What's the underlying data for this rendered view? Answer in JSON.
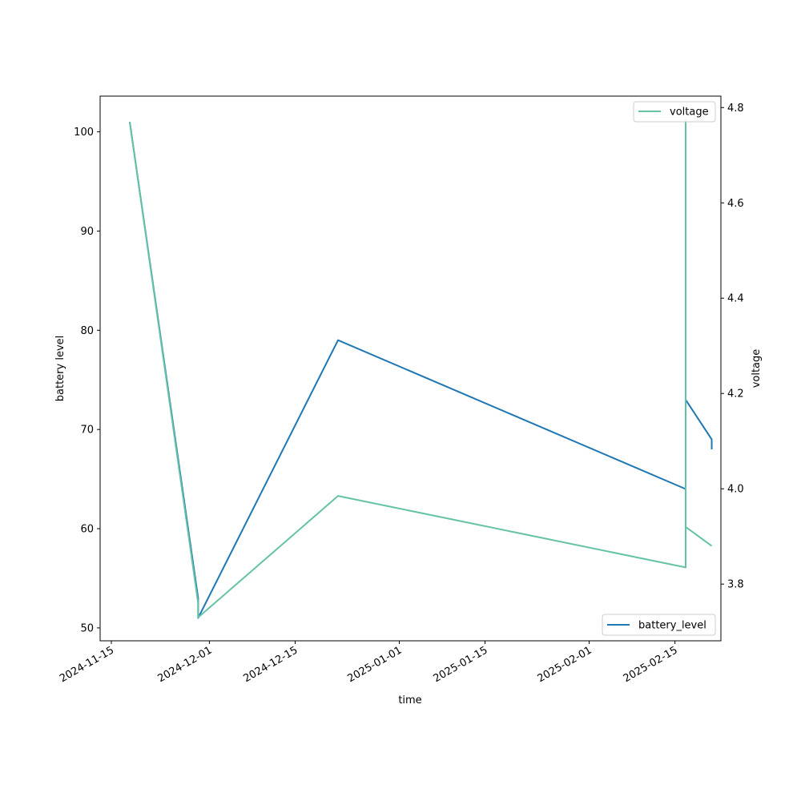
{
  "chart_data": {
    "type": "line",
    "xlabel": "time",
    "ylabel": "battery level",
    "y2label": "voltage",
    "x_ticks": [
      "2024-11-15",
      "2024-12-01",
      "2024-12-15",
      "2025-01-01",
      "2025-01-15",
      "2025-02-01",
      "2025-02-15"
    ],
    "x_range": [
      "2024-11-13T04:00",
      "2025-02-22T12:00"
    ],
    "y_ticks": [
      50,
      60,
      70,
      80,
      90,
      100
    ],
    "ylim": [
      48.7,
      103.6
    ],
    "y2_ticks": [
      3.8,
      4.0,
      4.2,
      4.4,
      4.6,
      4.8
    ],
    "y2lim": [
      3.681,
      4.824
    ],
    "grid": false,
    "series": [
      {
        "name": "battery_level",
        "axis": "left",
        "color": "#1f77b4",
        "legend_position": "lower-right",
        "points": [
          [
            "2024-11-18T00:00",
            101
          ],
          [
            "2024-11-29T04:00",
            53
          ],
          [
            "2024-11-29T04:00",
            51
          ],
          [
            "2024-12-22T00:00",
            79
          ],
          [
            "2025-02-16T18:00",
            64
          ],
          [
            "2025-02-16T18:00",
            98
          ],
          [
            "2025-02-16T18:00",
            101
          ],
          [
            "2025-02-16T18:00",
            73
          ],
          [
            "2025-02-21T00:00",
            69
          ],
          [
            "2025-02-21T00:00",
            68
          ]
        ]
      },
      {
        "name": "voltage",
        "axis": "right",
        "color": "#66c2a5",
        "legend_position": "upper-right",
        "points": [
          [
            "2024-11-18T00:00",
            4.77
          ],
          [
            "2024-11-29T04:00",
            3.76
          ],
          [
            "2024-11-29T04:00",
            3.73
          ],
          [
            "2024-12-22T00:00",
            3.985
          ],
          [
            "2025-02-16T18:00",
            3.835
          ],
          [
            "2025-02-16T18:00",
            4.71
          ],
          [
            "2025-02-16T18:00",
            4.775
          ],
          [
            "2025-02-16T18:00",
            3.92
          ],
          [
            "2025-02-21T00:00",
            3.88
          ]
        ]
      }
    ]
  }
}
